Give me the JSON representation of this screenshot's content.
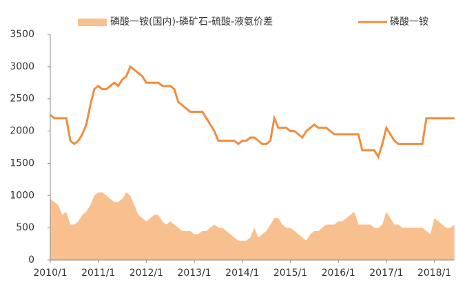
{
  "chart_data": {
    "type": "line",
    "categories": [
      "2010/1",
      null,
      null,
      null,
      null,
      null,
      null,
      null,
      null,
      null,
      null,
      null,
      "2011/1",
      null,
      null,
      null,
      null,
      null,
      null,
      null,
      null,
      null,
      null,
      null,
      "2012/1",
      null,
      null,
      null,
      null,
      null,
      null,
      null,
      null,
      null,
      null,
      null,
      "2013/1",
      null,
      null,
      null,
      null,
      null,
      null,
      null,
      null,
      null,
      null,
      null,
      "2014/1",
      null,
      null,
      null,
      null,
      null,
      null,
      null,
      null,
      null,
      null,
      null,
      "2015/1",
      null,
      null,
      null,
      null,
      null,
      null,
      null,
      null,
      null,
      null,
      null,
      "2016/1",
      null,
      null,
      null,
      null,
      null,
      null,
      null,
      null,
      null,
      null,
      null,
      "2017/1",
      null,
      null,
      null,
      null,
      null,
      null,
      null,
      null,
      null,
      null,
      null,
      "2018/1",
      null,
      null,
      null,
      null,
      null
    ],
    "series": [
      {
        "name": "磷酸一铵(国内)-磷矿石-硫酸-液氨价差",
        "kind": "area",
        "color": "#f8c08f",
        "values": [
          950,
          900,
          850,
          700,
          750,
          550,
          550,
          600,
          700,
          750,
          850,
          1000,
          1050,
          1050,
          1000,
          950,
          900,
          900,
          950,
          1050,
          1000,
          850,
          700,
          650,
          600,
          650,
          700,
          700,
          600,
          550,
          600,
          550,
          500,
          450,
          450,
          450,
          400,
          400,
          450,
          450,
          500,
          550,
          500,
          500,
          450,
          400,
          350,
          300,
          300,
          300,
          350,
          500,
          350,
          400,
          450,
          550,
          650,
          650,
          550,
          500,
          500,
          450,
          400,
          350,
          300,
          400,
          450,
          450,
          500,
          550,
          550,
          550,
          600,
          600,
          650,
          700,
          750,
          550,
          550,
          550,
          550,
          500,
          500,
          550,
          750,
          650,
          550,
          550,
          500,
          500,
          500,
          500,
          500,
          500,
          450,
          400,
          650,
          600,
          550,
          500,
          500,
          550
        ]
      },
      {
        "name": "磷酸一铵",
        "kind": "line",
        "color": "#f08c3c",
        "values": [
          2250,
          2200,
          2200,
          2200,
          2200,
          1850,
          1800,
          1850,
          1950,
          2100,
          2400,
          2650,
          2700,
          2650,
          2650,
          2700,
          2750,
          2700,
          2800,
          2850,
          3000,
          2950,
          2900,
          2850,
          2750,
          2750,
          2750,
          2750,
          2700,
          2700,
          2700,
          2650,
          2450,
          2400,
          2350,
          2300,
          2300,
          2300,
          2300,
          2200,
          2100,
          2000,
          1850,
          1850,
          1850,
          1850,
          1850,
          1800,
          1850,
          1850,
          1900,
          1900,
          1850,
          1800,
          1800,
          1850,
          2200,
          2050,
          2050,
          2050,
          2000,
          2000,
          1950,
          1900,
          2000,
          2050,
          2100,
          2050,
          2050,
          2050,
          2000,
          1950,
          1950,
          1950,
          1950,
          1950,
          1950,
          1950,
          1700,
          1700,
          1700,
          1700,
          1600,
          1800,
          2050,
          1950,
          1850,
          1800,
          1800,
          1800,
          1800,
          1800,
          1800,
          1800,
          2200,
          2200,
          2200,
          2200,
          2200,
          2200,
          2200,
          2200
        ]
      }
    ],
    "ylim": [
      0,
      3500
    ],
    "yticks": [
      0,
      500,
      1000,
      1500,
      2000,
      2500,
      3000,
      3500
    ],
    "legend": "top"
  }
}
